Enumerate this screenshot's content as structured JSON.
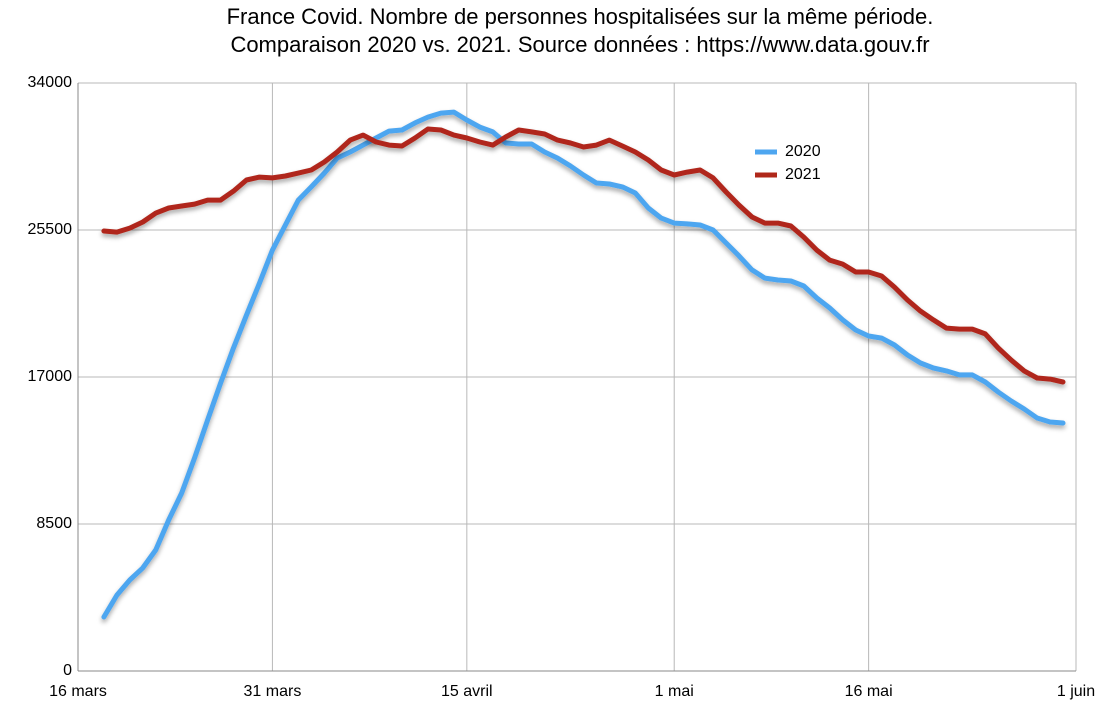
{
  "chart_data": {
    "type": "line",
    "title": "France Covid. Nombre de personnes hospitalisées sur la même période.",
    "subtitle": "Comparaison 2020 vs. 2021. Source données : https://www.data.gouv.fr",
    "x": [
      2,
      3,
      4,
      5,
      6,
      7,
      8,
      9,
      10,
      11,
      12,
      13,
      14,
      15,
      16,
      17,
      18,
      19,
      20,
      21,
      22,
      23,
      24,
      25,
      26,
      27,
      28,
      29,
      30,
      31,
      32,
      33,
      34,
      35,
      36,
      37,
      38,
      39,
      40,
      41,
      42,
      43,
      44,
      45,
      46,
      47,
      48,
      49,
      50,
      51,
      52,
      53,
      54,
      55,
      56,
      57,
      58,
      59,
      60,
      61,
      62,
      63,
      64,
      65,
      66,
      67,
      68,
      69,
      70,
      71,
      72,
      73,
      74,
      75,
      76
    ],
    "series": [
      {
        "name": "2020",
        "color": "#4ea6f0",
        "values": [
          3120,
          4390,
          5260,
          5960,
          7000,
          8730,
          10290,
          12320,
          14510,
          16650,
          18680,
          20580,
          22430,
          24340,
          25790,
          27230,
          27990,
          28790,
          29660,
          30010,
          30410,
          30820,
          31220,
          31280,
          31690,
          32030,
          32260,
          32320,
          31860,
          31450,
          31170,
          30530,
          30470,
          30470,
          30010,
          29660,
          29200,
          28680,
          28220,
          28160,
          27990,
          27640,
          26770,
          26190,
          25900,
          25850,
          25790,
          25500,
          24750,
          24000,
          23190,
          22720,
          22610,
          22550,
          22260,
          21570,
          20990,
          20300,
          19720,
          19370,
          19250,
          18850,
          18270,
          17810,
          17520,
          17350,
          17120,
          17120,
          16710,
          16130,
          15610,
          15150,
          14630,
          14400,
          14340
        ]
      },
      {
        "name": "2021",
        "color": "#b0281a",
        "values": [
          25440,
          25380,
          25610,
          25960,
          26480,
          26770,
          26890,
          27000,
          27230,
          27230,
          27750,
          28390,
          28560,
          28510,
          28620,
          28790,
          28970,
          29430,
          30010,
          30700,
          30990,
          30590,
          30410,
          30360,
          30820,
          31340,
          31280,
          30990,
          30820,
          30590,
          30410,
          30880,
          31280,
          31170,
          31050,
          30700,
          30530,
          30300,
          30410,
          30700,
          30360,
          30010,
          29550,
          28970,
          28680,
          28850,
          28970,
          28510,
          27700,
          26940,
          26250,
          25900,
          25900,
          25730,
          25090,
          24340,
          23760,
          23530,
          23070,
          23070,
          22840,
          22200,
          21450,
          20810,
          20300,
          19830,
          19770,
          19770,
          19490,
          18680,
          17980,
          17350,
          16940,
          16880,
          16710
        ]
      }
    ],
    "xlim": [
      0,
      77
    ],
    "xticks": [
      {
        "value": 0,
        "label": "16 mars"
      },
      {
        "value": 15,
        "label": "31 mars"
      },
      {
        "value": 30,
        "label": "15 avril"
      },
      {
        "value": 46,
        "label": "1 mai"
      },
      {
        "value": 61,
        "label": "16 mai"
      },
      {
        "value": 77,
        "label": "1 juin"
      }
    ],
    "ylim": [
      0,
      34000
    ],
    "yticks": [
      0,
      8500,
      17000,
      25500,
      34000
    ],
    "grid": true,
    "legend": "top-right"
  }
}
